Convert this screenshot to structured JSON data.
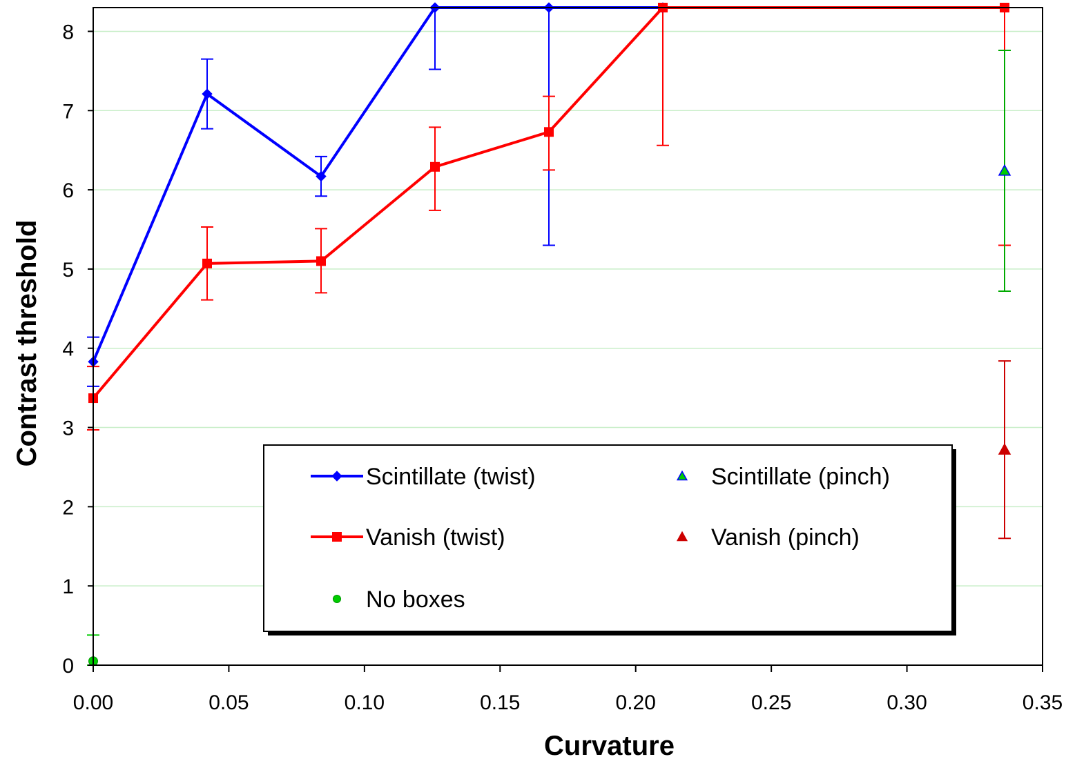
{
  "chart_data": {
    "type": "line",
    "title": "",
    "xlabel": "Curvature",
    "ylabel": "Contrast threshold",
    "xlim": [
      0,
      0.35
    ],
    "ylim": [
      0,
      8.3
    ],
    "xticks": [
      "0.00",
      "0.05",
      "0.10",
      "0.15",
      "0.20",
      "0.25",
      "0.30",
      "0.35"
    ],
    "yticks": [
      "0",
      "1",
      "2",
      "3",
      "4",
      "5",
      "6",
      "7",
      "8"
    ],
    "grid": "horizontal",
    "legend_position": "lower-center",
    "series": [
      {
        "name": "Scintillate (twist)",
        "type": "line",
        "color": "#0000ff",
        "marker": "diamond",
        "points": [
          {
            "x": 0.0,
            "y": 3.83,
            "lo": 3.52,
            "hi": 4.14
          },
          {
            "x": 0.042,
            "y": 7.21,
            "lo": 6.77,
            "hi": 7.65
          },
          {
            "x": 0.084,
            "y": 6.17,
            "lo": 5.92,
            "hi": 6.42
          },
          {
            "x": 0.126,
            "y": 8.3,
            "lo": 7.52,
            "hi": 8.3
          },
          {
            "x": 0.168,
            "y": 8.3,
            "lo": 5.3,
            "hi": 8.3
          },
          {
            "x": 0.21,
            "y": 8.3,
            "lo": 8.3,
            "hi": 8.3
          }
        ]
      },
      {
        "name": "Vanish (twist)",
        "type": "line",
        "color": "#ff0000",
        "marker": "square",
        "points": [
          {
            "x": 0.0,
            "y": 3.37,
            "lo": 2.97,
            "hi": 3.77
          },
          {
            "x": 0.042,
            "y": 5.07,
            "lo": 4.61,
            "hi": 5.53
          },
          {
            "x": 0.084,
            "y": 5.1,
            "lo": 4.7,
            "hi": 5.51
          },
          {
            "x": 0.126,
            "y": 6.29,
            "lo": 5.74,
            "hi": 6.79
          },
          {
            "x": 0.168,
            "y": 6.73,
            "lo": 6.25,
            "hi": 7.18
          },
          {
            "x": 0.21,
            "y": 8.3,
            "lo": 6.56,
            "hi": 8.3
          },
          {
            "x": 0.336,
            "y": 8.3,
            "lo": 5.3,
            "hi": 8.3
          }
        ]
      },
      {
        "name": "No boxes",
        "type": "scatter",
        "color": "#00cc00",
        "marker": "circle",
        "points": [
          {
            "x": 0.0,
            "y": 0.05,
            "lo": 0.0,
            "hi": 0.38
          }
        ]
      },
      {
        "name": "Scintillate (pinch)",
        "type": "scatter",
        "color": "#00cc00",
        "marker_edge": "#0000ff",
        "marker": "triangle",
        "points": [
          {
            "x": 0.336,
            "y": 6.24,
            "lo": 4.72,
            "hi": 7.76
          }
        ]
      },
      {
        "name": "Vanish (pinch)",
        "type": "scatter",
        "color": "#cc0000",
        "marker": "triangle",
        "points": [
          {
            "x": 0.336,
            "y": 2.72,
            "lo": 1.6,
            "hi": 3.84
          }
        ]
      }
    ]
  }
}
